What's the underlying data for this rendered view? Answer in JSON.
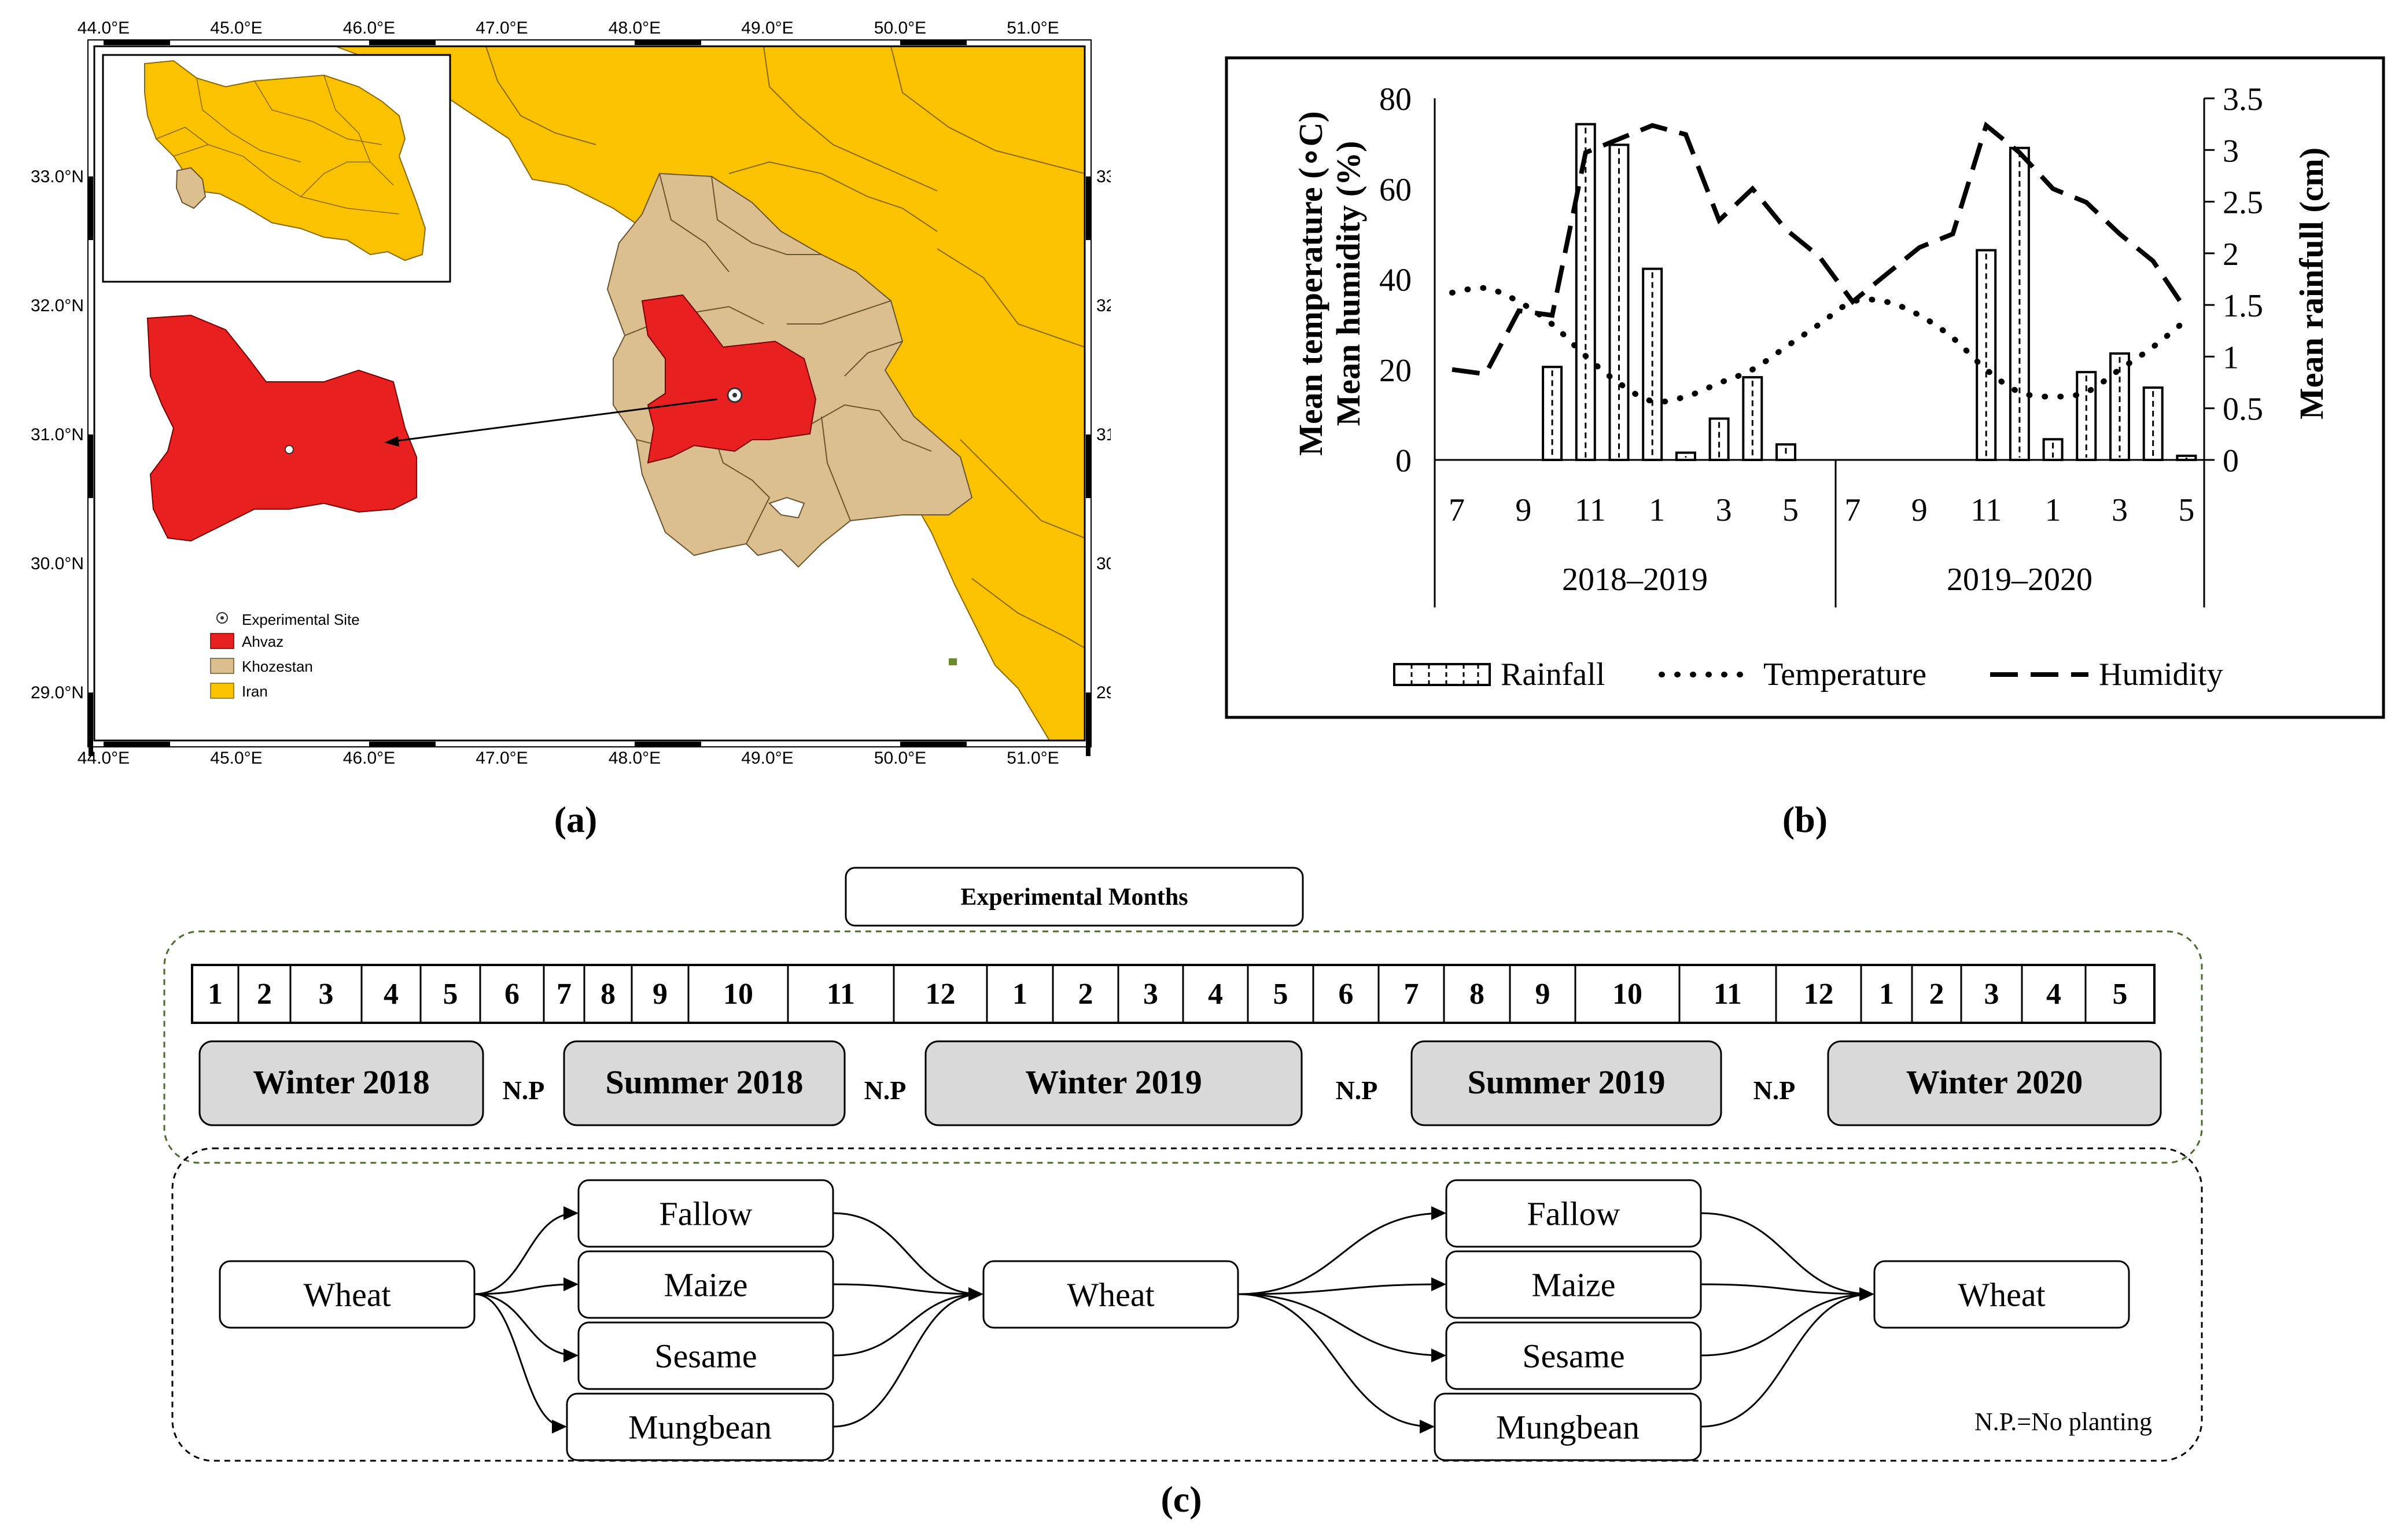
{
  "panel_labels": {
    "a": "(a)",
    "b": "(b)",
    "c": "(c)"
  },
  "map": {
    "lon_ticks": [
      "44.0°E",
      "45.0°E",
      "46.0°E",
      "47.0°E",
      "48.0°E",
      "49.0°E",
      "50.0°E",
      "51.0°E"
    ],
    "lat_ticks": [
      "33.0°N",
      "32.0°N",
      "31.0°N",
      "30.0°N",
      "29.0°N"
    ],
    "legend": [
      {
        "label": "Experimental Site",
        "color": "#ffffff",
        "symbol": "site"
      },
      {
        "label": "Ahvaz",
        "color": "#e82020"
      },
      {
        "label": "Khozestan",
        "color": "#dcbf8e"
      },
      {
        "label": "Iran",
        "color": "#fbc200"
      }
    ]
  },
  "chart_data": {
    "type": "bar+line",
    "x_tick_labels": [
      "7",
      "9",
      "11",
      "1",
      "3",
      "5",
      "7",
      "9",
      "11",
      "1",
      "3",
      "5"
    ],
    "seasons": [
      "2018–2019",
      "2019–2020"
    ],
    "months": [
      7,
      8,
      9,
      10,
      11,
      12,
      1,
      2,
      3,
      4,
      5,
      6,
      7,
      8,
      9,
      10,
      11,
      12,
      1,
      2,
      3,
      4,
      5
    ],
    "y_left": {
      "label_line1": "Mean temperature (∘C)",
      "label_line2": "Mean humidity (%)",
      "range": [
        0,
        80
      ],
      "ticks": [
        "0",
        "20",
        "40",
        "60",
        "80"
      ]
    },
    "y_right": {
      "label": "Mean rainfull (cm)",
      "range": [
        0,
        3.5
      ],
      "ticks": [
        "0",
        "0.5",
        "1",
        "1.5",
        "2",
        "2.5",
        "3",
        "3.5"
      ]
    },
    "series": [
      {
        "name": "Rainfall",
        "axis": "right",
        "type": "bar",
        "values": [
          0,
          0,
          0,
          0.9,
          3.25,
          3.05,
          1.85,
          0.07,
          0.4,
          0.8,
          0.15,
          null,
          0,
          0,
          0,
          0,
          2.03,
          3.02,
          0.2,
          0.85,
          1.03,
          0.7,
          0.04
        ]
      },
      {
        "name": "Temperature",
        "axis": "left",
        "type": "line",
        "style": "dotted",
        "values": [
          37,
          38,
          35,
          30,
          23,
          17,
          13,
          14,
          17,
          20,
          25,
          30,
          35,
          35,
          32,
          27,
          20,
          15,
          14,
          15,
          20,
          25,
          31
        ]
      },
      {
        "name": "Humidity",
        "axis": "left",
        "type": "line",
        "style": "dashed",
        "values": [
          20,
          19,
          33,
          32,
          68,
          71,
          74,
          72,
          53,
          60,
          51,
          45,
          35,
          41,
          47,
          50,
          74,
          68,
          60,
          57,
          50,
          44,
          33
        ]
      }
    ],
    "legend": [
      "Rainfall",
      "Temperature",
      "Humidity"
    ]
  },
  "experiment": {
    "header": "Experimental Months",
    "months": [
      "1",
      "2",
      "3",
      "4",
      "5",
      "6",
      "7",
      "8",
      "9",
      "10",
      "11",
      "12",
      "1",
      "2",
      "3",
      "4",
      "5",
      "6",
      "7",
      "8",
      "9",
      "10",
      "11",
      "12",
      "1",
      "2",
      "3",
      "4",
      "5"
    ],
    "seasons": [
      {
        "label": "Winter 2018"
      },
      {
        "label": "Summer 2018"
      },
      {
        "label": "Winter 2019"
      },
      {
        "label": "Summer 2019"
      },
      {
        "label": "Winter 2020"
      }
    ],
    "np_label": "N.P",
    "np_note": "N.P.=No planting",
    "crops": {
      "wheat": "Wheat",
      "fallow": "Fallow",
      "maize": "Maize",
      "sesame": "Sesame",
      "mungbean": "Mungbean"
    }
  }
}
